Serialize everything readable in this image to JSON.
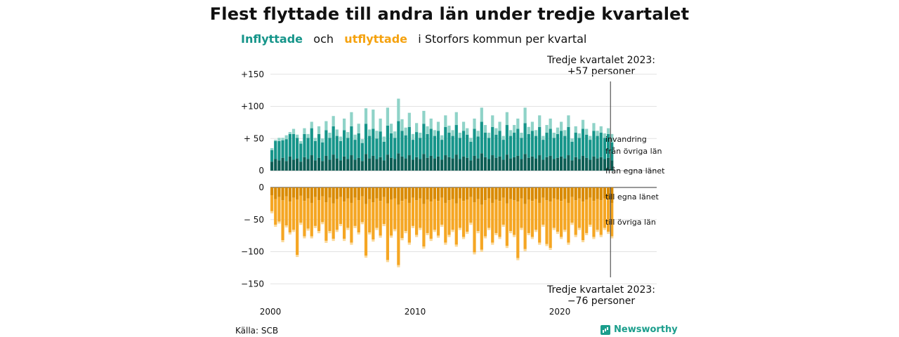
{
  "title": "Flest flyttade till andra län under tredje kvartalet",
  "subtitle": {
    "in_label": "Inflyttade",
    "and": "och",
    "out_label": "utflyttade",
    "rest": "i Storfors kommun per kvartal"
  },
  "annotation_top": "Tredje kvartalet 2023:\n+57 personer",
  "annotation_bottom": "Tredje kvartalet 2023:\n−76 personer",
  "source": "Källa: SCB",
  "brand": "Newsworthy",
  "colors": {
    "in_dark": "#0d5e55",
    "in_mid": "#16958a",
    "in_light": "#8fd3c8",
    "out_dark": "#d98a00",
    "out_mid": "#f5a623",
    "out_light": "#fbd99a"
  },
  "chart_data": {
    "type": "bar",
    "subtype": "stacked-diverging",
    "x_ticks": [
      "2000",
      "2010",
      "2020"
    ],
    "y_ticks_top": [
      "+150",
      "+100",
      "+ 50",
      "0"
    ],
    "y_ticks_bottom": [
      "0",
      "− 50",
      "−100",
      "−150"
    ],
    "ylim_top": [
      0,
      150
    ],
    "ylim_bottom": [
      -150,
      0
    ],
    "series_labels": {
      "in_light": "invandring",
      "in_mid": "från övriga län",
      "in_dark": "från egna länet",
      "out_dark": "till egna länet",
      "out_mid": "till övriga län"
    },
    "quarters_start": "2000 Q1",
    "quarters_end": "2023 Q3",
    "inflow": {
      "own_county": [
        14,
        18,
        16,
        20,
        15,
        22,
        17,
        19,
        14,
        21,
        18,
        24,
        16,
        20,
        15,
        23,
        17,
        25,
        19,
        16,
        22,
        18,
        24,
        17,
        20,
        15,
        26,
        19,
        23,
        18,
        21,
        16,
        25,
        20,
        18,
        27,
        22,
        19,
        24,
        17,
        21,
        18,
        26,
        20,
        23,
        19,
        22,
        17,
        24,
        21,
        19,
        25,
        18,
        22,
        20,
        16,
        23,
        19,
        27,
        21,
        18,
        24,
        20,
        22,
        17,
        25,
        19,
        21,
        23,
        18,
        26,
        20,
        22,
        19,
        24,
        17,
        21,
        23,
        18,
        20,
        22,
        19,
        24,
        16,
        21,
        18,
        23,
        20,
        17,
        22,
        19,
        21,
        18,
        20,
        16
      ],
      "other_counties": [
        18,
        28,
        30,
        27,
        34,
        35,
        40,
        32,
        28,
        36,
        33,
        42,
        30,
        37,
        29,
        40,
        34,
        44,
        35,
        30,
        41,
        33,
        45,
        31,
        38,
        28,
        47,
        35,
        42,
        32,
        40,
        29,
        45,
        38,
        33,
        50,
        40,
        36,
        44,
        31,
        39,
        33,
        47,
        37,
        42,
        35,
        40,
        31,
        44,
        38,
        35,
        46,
        33,
        40,
        36,
        29,
        42,
        34,
        49,
        38,
        33,
        44,
        36,
        40,
        31,
        46,
        35,
        38,
        42,
        33,
        48,
        37,
        40,
        35,
        44,
        31,
        38,
        42,
        33,
        37,
        40,
        35,
        44,
        29,
        38,
        33,
        42,
        36,
        31,
        40,
        35,
        38,
        33,
        37,
        28
      ],
      "immigration": [
        3,
        2,
        5,
        4,
        6,
        3,
        8,
        5,
        4,
        9,
        6,
        10,
        5,
        12,
        6,
        14,
        8,
        16,
        10,
        7,
        18,
        9,
        22,
        8,
        15,
        6,
        24,
        10,
        30,
        12,
        20,
        8,
        28,
        15,
        10,
        35,
        18,
        12,
        22,
        9,
        14,
        8,
        20,
        12,
        16,
        9,
        14,
        7,
        18,
        11,
        9,
        20,
        8,
        14,
        10,
        6,
        16,
        9,
        22,
        12,
        8,
        18,
        10,
        14,
        6,
        20,
        9,
        12,
        16,
        8,
        24,
        11,
        14,
        9,
        18,
        6,
        12,
        16,
        8,
        10,
        14,
        9,
        18,
        5,
        10,
        7,
        14,
        9,
        6,
        12,
        8,
        10,
        7,
        9,
        13
      ]
    },
    "outflow": {
      "own_county": [
        12,
        18,
        15,
        20,
        14,
        22,
        16,
        19,
        13,
        21,
        17,
        24,
        15,
        20,
        14,
        23,
        16,
        25,
        18,
        15,
        22,
        17,
        24,
        16,
        20,
        14,
        26,
        18,
        23,
        17,
        21,
        15,
        25,
        19,
        17,
        27,
        21,
        18,
        24,
        16,
        20,
        17,
        26,
        19,
        22,
        18,
        21,
        16,
        24,
        20,
        18,
        25,
        17,
        21,
        19,
        15,
        23,
        18,
        27,
        20,
        17,
        24,
        19,
        21,
        16,
        25,
        18,
        20,
        22,
        17,
        26,
        19,
        21,
        18,
        24,
        16,
        20,
        22,
        17,
        19,
        21,
        18,
        24,
        15,
        20,
        17,
        22,
        19,
        16,
        21,
        18,
        20,
        17,
        19,
        24
      ],
      "other_counties": [
        25,
        40,
        38,
        62,
        45,
        48,
        50,
        86,
        42,
        55,
        47,
        52,
        45,
        48,
        40,
        60,
        52,
        55,
        48,
        42,
        58,
        46,
        62,
        44,
        50,
        40,
        80,
        52,
        58,
        46,
        54,
        42,
        88,
        56,
        48,
        94,
        58,
        50,
        62,
        44,
        54,
        46,
        66,
        52,
        58,
        48,
        54,
        42,
        62,
        54,
        48,
        64,
        46,
        56,
        50,
        40,
        78,
        50,
        70,
        56,
        46,
        62,
        52,
        56,
        42,
        66,
        50,
        54,
        88,
        46,
        70,
        52,
        56,
        48,
        62,
        42,
        68,
        72,
        46,
        50,
        56,
        48,
        62,
        40,
        54,
        46,
        60,
        52,
        42,
        56,
        48,
        54,
        46,
        50,
        52
      ]
    }
  }
}
